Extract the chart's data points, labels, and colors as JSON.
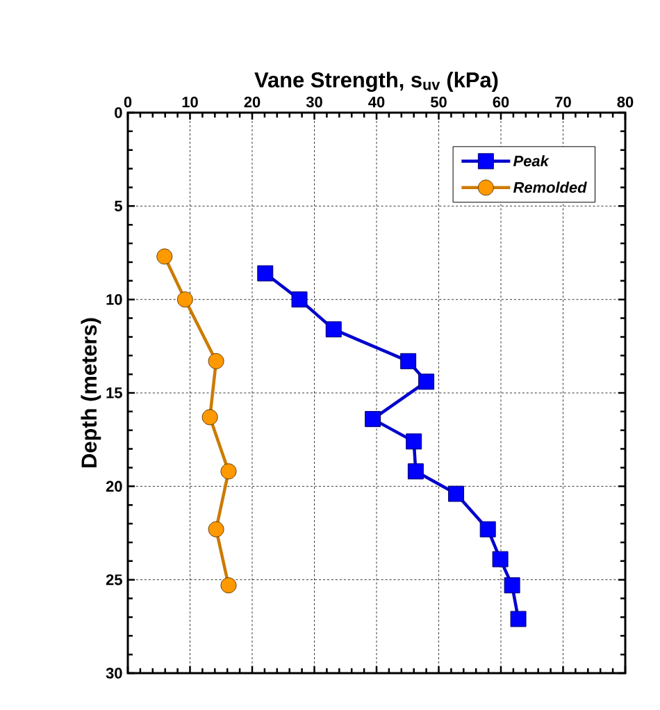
{
  "chart_data": {
    "type": "line",
    "xlabel": "Vane Strength, s$_{uv}$ (kPa)",
    "ylabel": "Depth (meters)",
    "xlim": [
      0,
      80
    ],
    "xticks": [
      0,
      10,
      20,
      30,
      40,
      50,
      60,
      70,
      80
    ],
    "ylim": [
      30,
      0
    ],
    "yticks": [
      0,
      5,
      10,
      15,
      20,
      25,
      30
    ],
    "grid": true,
    "legend": "top right",
    "series": [
      {
        "name": "Peak",
        "color": "#0000ff",
        "marker": "square",
        "x": [
          22.1,
          27.6,
          33.1,
          45.1,
          48.0,
          39.4,
          46.0,
          46.3,
          52.8,
          57.9,
          59.9,
          61.8,
          62.8
        ],
        "values": [
          8.6,
          10.0,
          11.6,
          13.3,
          14.4,
          16.4,
          17.6,
          19.2,
          20.4,
          22.3,
          23.9,
          25.3,
          27.1
        ]
      },
      {
        "name": "Remolded",
        "color": "#ff9900",
        "marker": "circle",
        "x": [
          5.9,
          9.2,
          14.2,
          13.2,
          16.2,
          14.2,
          16.2
        ],
        "values": [
          7.7,
          10.0,
          13.3,
          16.3,
          19.2,
          22.3,
          25.3
        ]
      }
    ]
  }
}
